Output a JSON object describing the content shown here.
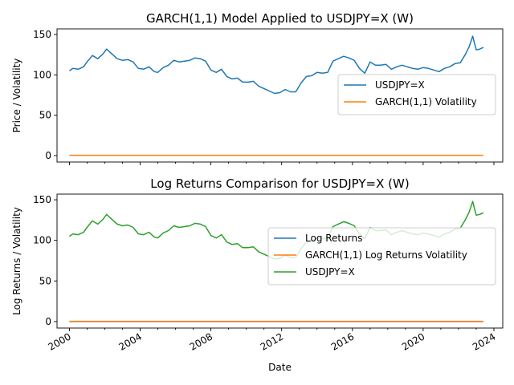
{
  "chart_data": [
    {
      "type": "line",
      "title": "GARCH(1,1) Model Applied to USDJPY=X (W)",
      "xlabel": "",
      "ylabel": "Price / Volatility",
      "xlim": [
        1999.3,
        2024.5
      ],
      "ylim": [
        -8,
        157
      ],
      "yticks": [
        0,
        50,
        100,
        150
      ],
      "xticks": [
        2000,
        2004,
        2008,
        2012,
        2016,
        2020,
        2024
      ],
      "xtick_labels_visible": false,
      "legend_position": "center-right",
      "grid": false,
      "series": [
        {
          "name": "USDJPY=X",
          "color": "#1f77b4",
          "x": [
            2000.0,
            2000.2,
            2000.5,
            2000.8,
            2001.0,
            2001.3,
            2001.6,
            2001.9,
            2002.1,
            2002.4,
            2002.7,
            2003.0,
            2003.3,
            2003.6,
            2003.9,
            2004.2,
            2004.5,
            2004.8,
            2005.0,
            2005.3,
            2005.6,
            2005.9,
            2006.2,
            2006.5,
            2006.8,
            2007.1,
            2007.4,
            2007.7,
            2008.0,
            2008.3,
            2008.6,
            2008.9,
            2009.2,
            2009.5,
            2009.8,
            2010.1,
            2010.4,
            2010.7,
            2011.0,
            2011.3,
            2011.6,
            2011.9,
            2012.2,
            2012.5,
            2012.8,
            2013.1,
            2013.4,
            2013.7,
            2014.0,
            2014.3,
            2014.6,
            2014.9,
            2015.2,
            2015.5,
            2015.8,
            2016.1,
            2016.4,
            2016.7,
            2017.0,
            2017.3,
            2017.6,
            2017.9,
            2018.2,
            2018.5,
            2018.8,
            2019.1,
            2019.4,
            2019.7,
            2020.0,
            2020.3,
            2020.6,
            2020.9,
            2021.2,
            2021.5,
            2021.8,
            2022.1,
            2022.4,
            2022.6,
            2022.8,
            2022.9,
            2023.0,
            2023.2,
            2023.4
          ],
          "values": [
            105,
            108,
            107,
            110,
            116,
            124,
            120,
            126,
            132,
            126,
            120,
            118,
            119,
            116,
            108,
            107,
            110,
            104,
            103,
            109,
            112,
            118,
            116,
            117,
            118,
            121,
            120,
            117,
            106,
            103,
            107,
            98,
            95,
            96,
            91,
            91,
            92,
            86,
            83,
            80,
            77,
            78,
            82,
            79,
            79,
            90,
            98,
            99,
            103,
            102,
            103,
            117,
            120,
            123,
            121,
            118,
            108,
            102,
            116,
            112,
            112,
            113,
            107,
            110,
            112,
            110,
            108,
            107,
            109,
            108,
            106,
            104,
            108,
            110,
            114,
            115,
            126,
            135,
            148,
            139,
            131,
            132,
            134
          ]
        },
        {
          "name": "GARCH(1,1) Volatility",
          "color": "#ff7f0e",
          "x": [
            2000.0,
            2023.4
          ],
          "values": [
            0.3,
            0.3
          ]
        }
      ]
    },
    {
      "type": "line",
      "title": "Log Returns Comparison for USDJPY=X (W)",
      "xlabel": "Date",
      "ylabel": "Log Returns / Volatility",
      "xlim": [
        1999.3,
        2024.5
      ],
      "ylim": [
        -8,
        157
      ],
      "yticks": [
        0,
        50,
        100,
        150
      ],
      "xticks": [
        2000,
        2004,
        2008,
        2012,
        2016,
        2020,
        2024
      ],
      "xtick_labels": [
        "2000",
        "2004",
        "2008",
        "2012",
        "2016",
        "2020",
        "2024"
      ],
      "legend_position": "center-right",
      "grid": false,
      "series": [
        {
          "name": "Log Returns",
          "color": "#1f77b4",
          "x": [
            2000.0,
            2023.4
          ],
          "values": [
            0.0,
            0.0
          ]
        },
        {
          "name": "GARCH(1,1) Log Returns Volatility",
          "color": "#ff7f0e",
          "x": [
            2000.0,
            2023.4
          ],
          "values": [
            0.3,
            0.3
          ]
        },
        {
          "name": "USDJPY=X",
          "color": "#2ca02c",
          "x": [
            2000.0,
            2000.2,
            2000.5,
            2000.8,
            2001.0,
            2001.3,
            2001.6,
            2001.9,
            2002.1,
            2002.4,
            2002.7,
            2003.0,
            2003.3,
            2003.6,
            2003.9,
            2004.2,
            2004.5,
            2004.8,
            2005.0,
            2005.3,
            2005.6,
            2005.9,
            2006.2,
            2006.5,
            2006.8,
            2007.1,
            2007.4,
            2007.7,
            2008.0,
            2008.3,
            2008.6,
            2008.9,
            2009.2,
            2009.5,
            2009.8,
            2010.1,
            2010.4,
            2010.7,
            2011.0,
            2011.3,
            2011.6,
            2011.9,
            2012.2,
            2012.5,
            2012.8,
            2013.1,
            2013.4,
            2013.7,
            2014.0,
            2014.3,
            2014.6,
            2014.9,
            2015.2,
            2015.5,
            2015.8,
            2016.1,
            2016.4,
            2016.7,
            2017.0,
            2017.3,
            2017.6,
            2017.9,
            2018.2,
            2018.5,
            2018.8,
            2019.1,
            2019.4,
            2019.7,
            2020.0,
            2020.3,
            2020.6,
            2020.9,
            2021.2,
            2021.5,
            2021.8,
            2022.1,
            2022.4,
            2022.6,
            2022.8,
            2022.9,
            2023.0,
            2023.2,
            2023.4
          ],
          "values": [
            105,
            108,
            107,
            110,
            116,
            124,
            120,
            126,
            132,
            126,
            120,
            118,
            119,
            116,
            108,
            107,
            110,
            104,
            103,
            109,
            112,
            118,
            116,
            117,
            118,
            121,
            120,
            117,
            106,
            103,
            107,
            98,
            95,
            96,
            91,
            91,
            92,
            86,
            83,
            80,
            77,
            78,
            82,
            79,
            79,
            90,
            98,
            99,
            103,
            102,
            103,
            117,
            120,
            123,
            121,
            118,
            108,
            102,
            116,
            112,
            112,
            113,
            107,
            110,
            112,
            110,
            108,
            107,
            109,
            108,
            106,
            104,
            108,
            110,
            114,
            115,
            126,
            135,
            148,
            139,
            131,
            132,
            134
          ]
        }
      ]
    }
  ]
}
